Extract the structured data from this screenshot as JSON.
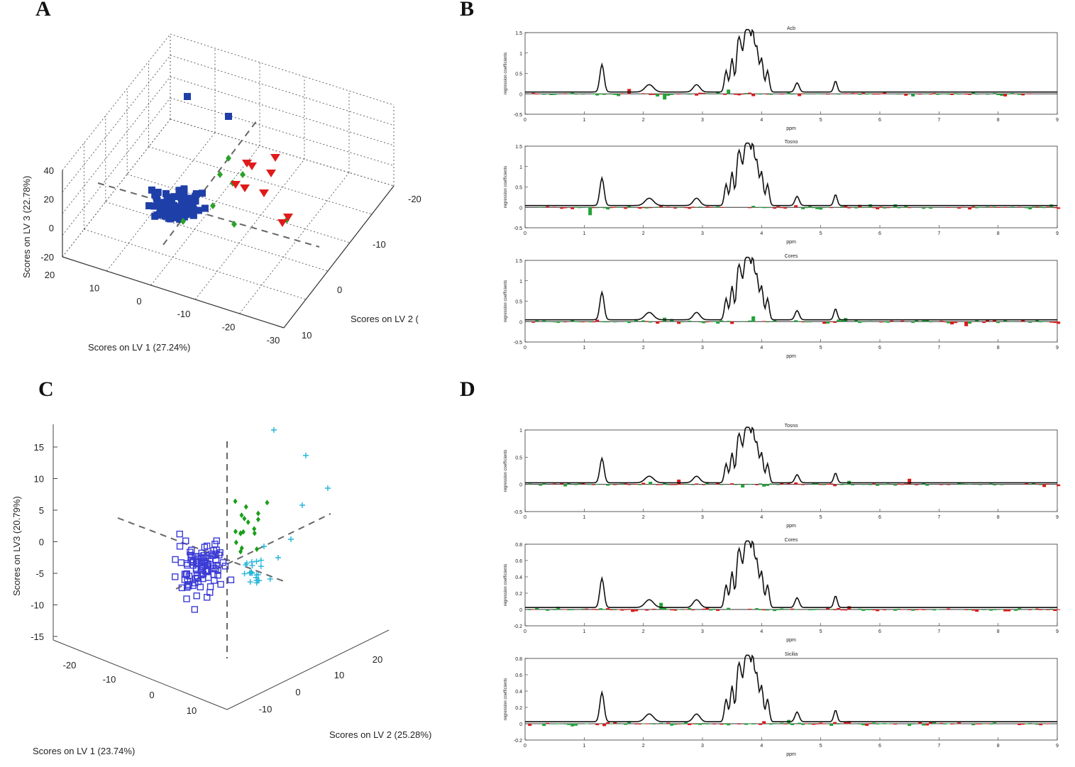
{
  "figure": {
    "panels": {
      "A": "A",
      "B": "B",
      "C": "C",
      "D": "D"
    }
  },
  "chart_data": [
    {
      "id": "A",
      "type": "scatter",
      "projection": "3d",
      "xlabel": "Scores on LV 1 (27.24%)",
      "ylabel": "Scores on LV 2 (",
      "zlabel": "Scores on LV 3 (22.78%)",
      "x_ticks": [
        "20",
        "10",
        "0",
        "-10",
        "-20",
        "-30"
      ],
      "y_ticks": [
        "-20",
        "-10",
        "0",
        "10"
      ],
      "z_ticks": [
        "40",
        "20",
        "0",
        "-20"
      ],
      "grid": true,
      "colors": {
        "group1": "#1f3fa8",
        "group2": "#2aa22a",
        "group3": "#e01b1b"
      },
      "series": [
        {
          "marker": "filled-square",
          "color": "#1f3fa8",
          "count": 90
        },
        {
          "marker": "filled-diamond",
          "color": "#2aa22a",
          "count": 8
        },
        {
          "marker": "filled-triangle-down",
          "color": "#e01b1b",
          "count": 9
        }
      ]
    },
    {
      "id": "B",
      "type": "bar",
      "subplots": [
        {
          "title": "Acb",
          "ylabel": "regression coefficients",
          "xlabel": "ppm",
          "ylim": [
            -0.5,
            1.5
          ],
          "y_ticks": [
            "1.5",
            "1",
            "0.5",
            "0",
            "-0.5"
          ],
          "x_ticks": [
            "0",
            "1",
            "2",
            "3",
            "4",
            "5",
            "6",
            "7",
            "8",
            "9"
          ]
        },
        {
          "title": "Tosno",
          "ylabel": "regression coefficients",
          "xlabel": "ppm",
          "ylim": [
            -0.5,
            1.5
          ],
          "y_ticks": [
            "1.5",
            "1",
            "0.5",
            "0",
            "-0.5"
          ],
          "x_ticks": [
            "0",
            "1",
            "2",
            "3",
            "4",
            "5",
            "6",
            "7",
            "8",
            "9"
          ]
        },
        {
          "title": "Cores",
          "ylabel": "regression coefficients",
          "xlabel": "ppm",
          "ylim": [
            -0.5,
            1.5
          ],
          "y_ticks": [
            "1.5",
            "1",
            "0.5",
            "0",
            "-0.5"
          ],
          "x_ticks": [
            "0",
            "1",
            "2",
            "3",
            "4",
            "5",
            "6",
            "7",
            "8",
            "9"
          ]
        }
      ]
    },
    {
      "id": "C",
      "type": "scatter",
      "projection": "3d",
      "xlabel": "Scores on LV 1 (23.74%)",
      "ylabel": "Scores on LV 2 (25.28%)",
      "zlabel": "Scores on LV3 (20.79%)",
      "x_ticks": [
        "-20",
        "-10",
        "0",
        "10"
      ],
      "y_ticks": [
        "-10",
        "0",
        "10",
        "20"
      ],
      "z_ticks": [
        "15",
        "10",
        "5",
        "0",
        "-5",
        "-10",
        "-15"
      ],
      "grid": false,
      "colors": {
        "group1": "#3b3bd6",
        "group2": "#1a9e1a",
        "group3": "#22b5d9"
      },
      "series": [
        {
          "marker": "open-square",
          "color": "#3b3bd6",
          "count": 95
        },
        {
          "marker": "filled-diamond",
          "color": "#1a9e1a",
          "count": 18
        },
        {
          "marker": "plus",
          "color": "#22b5d9",
          "count": 28
        }
      ]
    },
    {
      "id": "D",
      "type": "bar",
      "subplots": [
        {
          "title": "Tosno",
          "ylabel": "regression coefficients",
          "xlabel": "ppm",
          "ylim": [
            -0.5,
            1
          ],
          "y_ticks": [
            "1",
            "0.5",
            "0",
            "-0.5"
          ],
          "x_ticks": [
            "0",
            "1",
            "2",
            "3",
            "4",
            "5",
            "6",
            "7",
            "8",
            "9"
          ]
        },
        {
          "title": "Cores",
          "ylabel": "regression coefficients",
          "xlabel": "ppm",
          "ylim": [
            -0.2,
            0.8
          ],
          "y_ticks": [
            "0.8",
            "0.6",
            "0.4",
            "0.2",
            "0",
            "-0.2"
          ],
          "x_ticks": [
            "0",
            "1",
            "2",
            "3",
            "4",
            "5",
            "6",
            "7",
            "8",
            "9"
          ]
        },
        {
          "title": "Sicilia",
          "ylabel": "regression coefficients",
          "xlabel": "ppm",
          "ylim": [
            -0.2,
            0.8
          ],
          "y_ticks": [
            "0.8",
            "0.6",
            "0.4",
            "0.2",
            "0",
            "-0.2"
          ],
          "x_ticks": [
            "0",
            "1",
            "2",
            "3",
            "4",
            "5",
            "6",
            "7",
            "8",
            "9"
          ]
        }
      ]
    }
  ]
}
